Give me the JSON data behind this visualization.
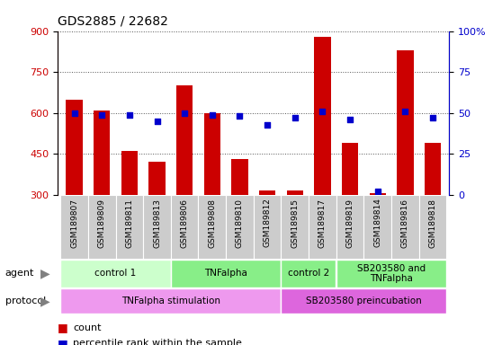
{
  "title": "GDS2885 / 22682",
  "samples": [
    "GSM189807",
    "GSM189809",
    "GSM189811",
    "GSM189813",
    "GSM189806",
    "GSM189808",
    "GSM189810",
    "GSM189812",
    "GSM189815",
    "GSM189817",
    "GSM189819",
    "GSM189814",
    "GSM189816",
    "GSM189818"
  ],
  "counts": [
    650,
    610,
    460,
    420,
    700,
    600,
    430,
    315,
    315,
    880,
    490,
    305,
    830,
    490
  ],
  "percentiles": [
    50,
    49,
    49,
    45,
    50,
    49,
    48,
    43,
    47,
    51,
    46,
    2,
    51,
    47
  ],
  "ylim_left": [
    300,
    900
  ],
  "ylim_right": [
    0,
    100
  ],
  "yticks_left": [
    300,
    450,
    600,
    750,
    900
  ],
  "yticks_right": [
    0,
    25,
    50,
    75,
    100
  ],
  "bar_color": "#cc0000",
  "dot_color": "#0000cc",
  "agent_spans": [
    {
      "label": "control 1",
      "start": 0,
      "end": 4,
      "color": "#ccffcc"
    },
    {
      "label": "TNFalpha",
      "start": 4,
      "end": 8,
      "color": "#88ee88"
    },
    {
      "label": "control 2",
      "start": 8,
      "end": 10,
      "color": "#88ee88"
    },
    {
      "label": "SB203580 and\nTNFalpha",
      "start": 10,
      "end": 14,
      "color": "#88ee88"
    }
  ],
  "protocol_spans": [
    {
      "label": "TNFalpha stimulation",
      "start": 0,
      "end": 8,
      "color": "#ee99ee"
    },
    {
      "label": "SB203580 preincubation",
      "start": 8,
      "end": 14,
      "color": "#dd66dd"
    }
  ],
  "legend_count_label": "count",
  "legend_pct_label": "percentile rank within the sample",
  "agent_label": "agent",
  "protocol_label": "protocol",
  "bg_color": "#ffffff",
  "sample_bg_color": "#cccccc",
  "grid_color": "#555555",
  "left_tick_color": "#cc0000",
  "right_tick_color": "#0000cc"
}
